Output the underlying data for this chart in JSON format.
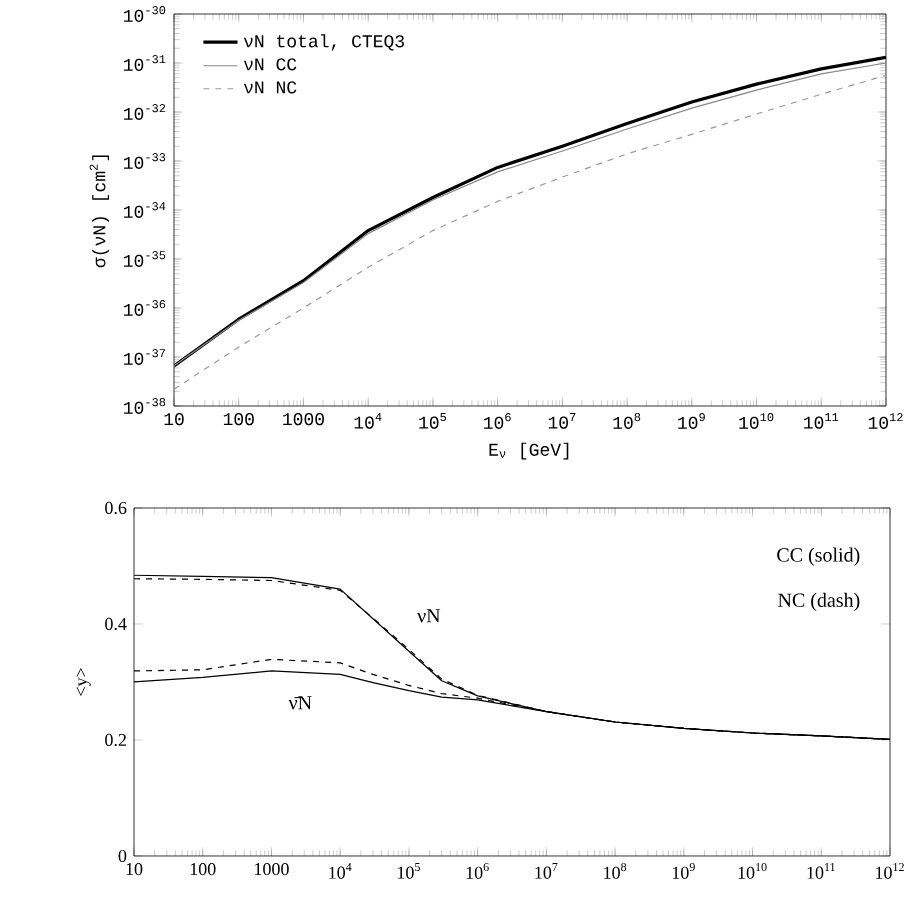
{
  "chart_data": [
    {
      "type": "line",
      "xlabel": "E$_{ν}$ [GeV]",
      "ylabel": "σ(νN) [cm$^{2}$]",
      "log": "xy",
      "legend": "top left",
      "xlim": [
        10,
        1000000000000.0
      ],
      "ylim": [
        1e-38,
        1e-30
      ],
      "xticks": [
        10,
        100,
        1000,
        {
          "value": 10000.0,
          "label": "10$^{4}$"
        },
        {
          "value": 100000.0,
          "label": "10$^{5}$"
        },
        {
          "value": 1000000.0,
          "label": "10$^{6}$"
        },
        {
          "value": 10000000.0,
          "label": "10$^{7}$"
        },
        {
          "value": 100000000.0,
          "label": "10$^{8}$"
        },
        {
          "value": 1000000000.0,
          "label": "10$^{9}$"
        },
        {
          "value": 10000000000.0,
          "label": "10$^{10}$"
        },
        {
          "value": 100000000000.0,
          "label": "10$^{11}$"
        },
        {
          "value": 1000000000000.0,
          "label": "10$^{12}$"
        }
      ],
      "yticks": [
        {
          "value": 1e-38,
          "label": "10$^{-38}$"
        },
        {
          "value": 1e-37,
          "label": "10$^{-37}$"
        },
        {
          "value": 1e-36,
          "label": "10$^{-36}$"
        },
        {
          "value": 1e-35,
          "label": "10$^{-35}$"
        },
        {
          "value": 1e-34,
          "label": "10$^{-34}$"
        },
        {
          "value": 1e-33,
          "label": "10$^{-33}$"
        },
        {
          "value": 1e-32,
          "label": "10$^{-32}$"
        },
        {
          "value": 1e-31,
          "label": "10$^{-31}$"
        },
        {
          "value": 1e-30,
          "label": "10$^{-30}$"
        }
      ],
      "x": [
        10,
        100,
        1000,
        10000.0,
        100000.0,
        1000000.0,
        10000000.0,
        100000000.0,
        1000000000.0,
        10000000000.0,
        100000000000.0,
        1000000000000.0
      ],
      "series": [
        {
          "name": "νN total, CTEQ3",
          "color": "#000000",
          "line_style": "solid",
          "values": [
            6.6e-38,
            5.9e-37,
            3.6e-36,
            3.8e-35,
            1.8e-34,
            7.4e-34,
            2e-33,
            5.8e-33,
            1.6e-32,
            3.7e-32,
            7.6e-32,
            1.3e-31
          ]
        },
        {
          "name": "νN CC",
          "color": "#888888",
          "line_style": "solid",
          "values": [
            6.6e-38,
            5.6e-37,
            3.3e-36,
            3.3e-35,
            1.6e-34,
            6e-34,
            1.6e-33,
            4.5e-33,
            1.2e-32,
            2.8e-32,
            6e-32,
            1e-31
          ]
        },
        {
          "name": "νN NC",
          "color": "#999999",
          "line_style": "dashed",
          "values": [
            2.2e-38,
            1.6e-37,
            1e-36,
            6.8e-36,
            3.8e-35,
            1.5e-34,
            4.7e-34,
            1.4e-33,
            3.5e-33,
            9.1e-33,
            2.3e-32,
            5.6e-32
          ]
        }
      ]
    },
    {
      "type": "line",
      "ylabel": "<y>",
      "log": "x",
      "xlim": [
        10,
        1000000000000.0
      ],
      "ylim": [
        0,
        0.6
      ],
      "xticks": [
        10,
        100,
        1000,
        {
          "value": 10000.0,
          "label": "10$^{4}$"
        },
        {
          "value": 100000.0,
          "label": "10$^{5}$"
        },
        {
          "value": 1000000.0,
          "label": "10$^{6}$"
        },
        {
          "value": 10000000.0,
          "label": "10$^{7}$"
        },
        {
          "value": 100000000.0,
          "label": "10$^{8}$"
        },
        {
          "value": 1000000000.0,
          "label": "10$^{9}$"
        },
        {
          "value": 10000000000.0,
          "label": "10$^{10}$"
        },
        {
          "value": 100000000000.0,
          "label": "10$^{11}$"
        },
        {
          "value": 1000000000000.0,
          "label": "10$^{12}$"
        }
      ],
      "yticks": [
        0,
        0.2,
        0.4,
        0.6
      ],
      "x": [
        10,
        100,
        1000,
        10000.0,
        30000.0,
        100000.0,
        300000.0,
        1000000.0,
        10000000.0,
        100000000.0,
        1000000000.0,
        10000000000.0,
        100000000000.0,
        1000000000000.0
      ],
      "series": [
        {
          "color": "#000000",
          "line_style": "solid",
          "values": [
            0.484,
            0.482,
            0.48,
            0.46,
            0.409,
            0.353,
            0.302,
            0.276,
            0.249,
            0.231,
            0.22,
            0.212,
            0.207,
            0.201
          ]
        },
        {
          "color": "#000000",
          "line_style": "dashed",
          "values": [
            0.478,
            0.477,
            0.475,
            0.458,
            0.41,
            0.356,
            0.305,
            0.277,
            0.249,
            0.231,
            0.22,
            0.212,
            0.207,
            0.201
          ]
        },
        {
          "color": "#000000",
          "line_style": "solid",
          "values": [
            0.3,
            0.308,
            0.319,
            0.313,
            0.299,
            0.285,
            0.274,
            0.269,
            0.249,
            0.231,
            0.22,
            0.212,
            0.207,
            0.201
          ]
        },
        {
          "color": "#000000",
          "line_style": "dashed",
          "values": [
            0.319,
            0.321,
            0.339,
            0.333,
            0.313,
            0.294,
            0.28,
            0.272,
            0.249,
            0.231,
            0.22,
            0.212,
            0.207,
            0.201
          ]
        }
      ],
      "annotations": [
        "νN",
        "ν̄N",
        "CC (solid)",
        "NC (dash)"
      ]
    }
  ]
}
